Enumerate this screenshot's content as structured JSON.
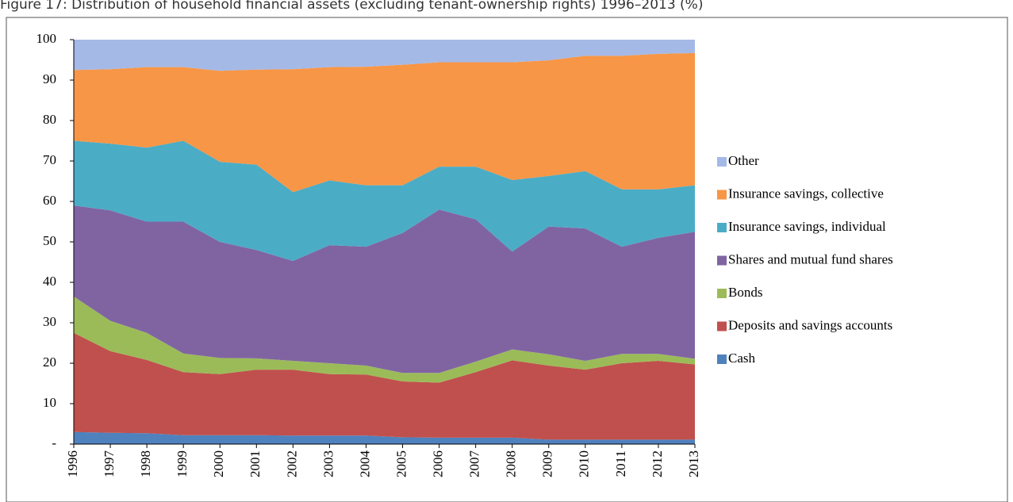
{
  "chart_data": {
    "type": "stacked-area",
    "title": "Figure 17: Distribution of household financial assets (excluding tenant-ownership rights) 1996–2013 (%)",
    "categories": [
      "1996",
      "1997",
      "1998",
      "1999",
      "2000",
      "2001",
      "2002",
      "2003",
      "2004",
      "2005",
      "2006",
      "2007",
      "2008",
      "2009",
      "2010",
      "2011",
      "2012",
      "2013"
    ],
    "series": [
      {
        "name": "Cash",
        "color": "#4f81bd",
        "values": [
          3,
          2.8,
          2.7,
          2.2,
          2.2,
          2.2,
          2.1,
          2.1,
          2.1,
          1.7,
          1.6,
          1.6,
          1.6,
          1.1,
          1.1,
          1.1,
          1.1,
          1.1
        ]
      },
      {
        "name": "Deposits and savings accounts",
        "color": "#c0504d",
        "values": [
          24.5,
          20.2,
          18.1,
          15.6,
          15.1,
          16.2,
          16.3,
          15.2,
          15.1,
          13.8,
          13.6,
          16.2,
          19.1,
          18.3,
          17.3,
          18.9,
          19.5,
          18.6
        ]
      },
      {
        "name": "Bonds",
        "color": "#9bbb59",
        "values": [
          9,
          7.5,
          6.7,
          4.6,
          4,
          2.8,
          2.2,
          2.7,
          2.2,
          2.1,
          2.4,
          2.6,
          2.7,
          2.8,
          2.2,
          2.3,
          1.7,
          1.4
        ]
      },
      {
        "name": "Shares and mutual fund shares",
        "color": "#8064a2",
        "values": [
          22.5,
          27.3,
          27.5,
          32.6,
          28.7,
          26.8,
          24.7,
          29.2,
          29.4,
          34.6,
          40.4,
          35.2,
          24.2,
          31.6,
          32.7,
          26.5,
          28.7,
          31.4
        ]
      },
      {
        "name": "Insurance savings, individual",
        "color": "#4bacc6",
        "values": [
          16,
          16.5,
          18.3,
          20,
          19.8,
          21.1,
          17,
          16,
          15.2,
          11.8,
          10.6,
          13,
          17.7,
          12.5,
          14.2,
          14.2,
          12,
          11.5
        ]
      },
      {
        "name": "Insurance savings, collective",
        "color": "#f79646",
        "values": [
          17.5,
          18.4,
          19.9,
          18.2,
          22.5,
          23.5,
          30.4,
          28,
          29.3,
          29.8,
          25.8,
          25.8,
          29.1,
          28.6,
          28.5,
          33,
          33.5,
          32.7
        ]
      },
      {
        "name": "Other",
        "color": "#a5b9e6",
        "values": [
          7.5,
          7.3,
          6.8,
          6.8,
          7.7,
          7.4,
          7.3,
          6.8,
          6.7,
          6.2,
          5.6,
          5.6,
          5.6,
          5.1,
          4,
          4,
          3.5,
          3.3
        ]
      }
    ],
    "ylim": [
      0,
      100
    ],
    "yticks": [
      {
        "value": 0,
        "label": "-"
      },
      10,
      20,
      30,
      40,
      50,
      60,
      70,
      80,
      90,
      100
    ]
  }
}
